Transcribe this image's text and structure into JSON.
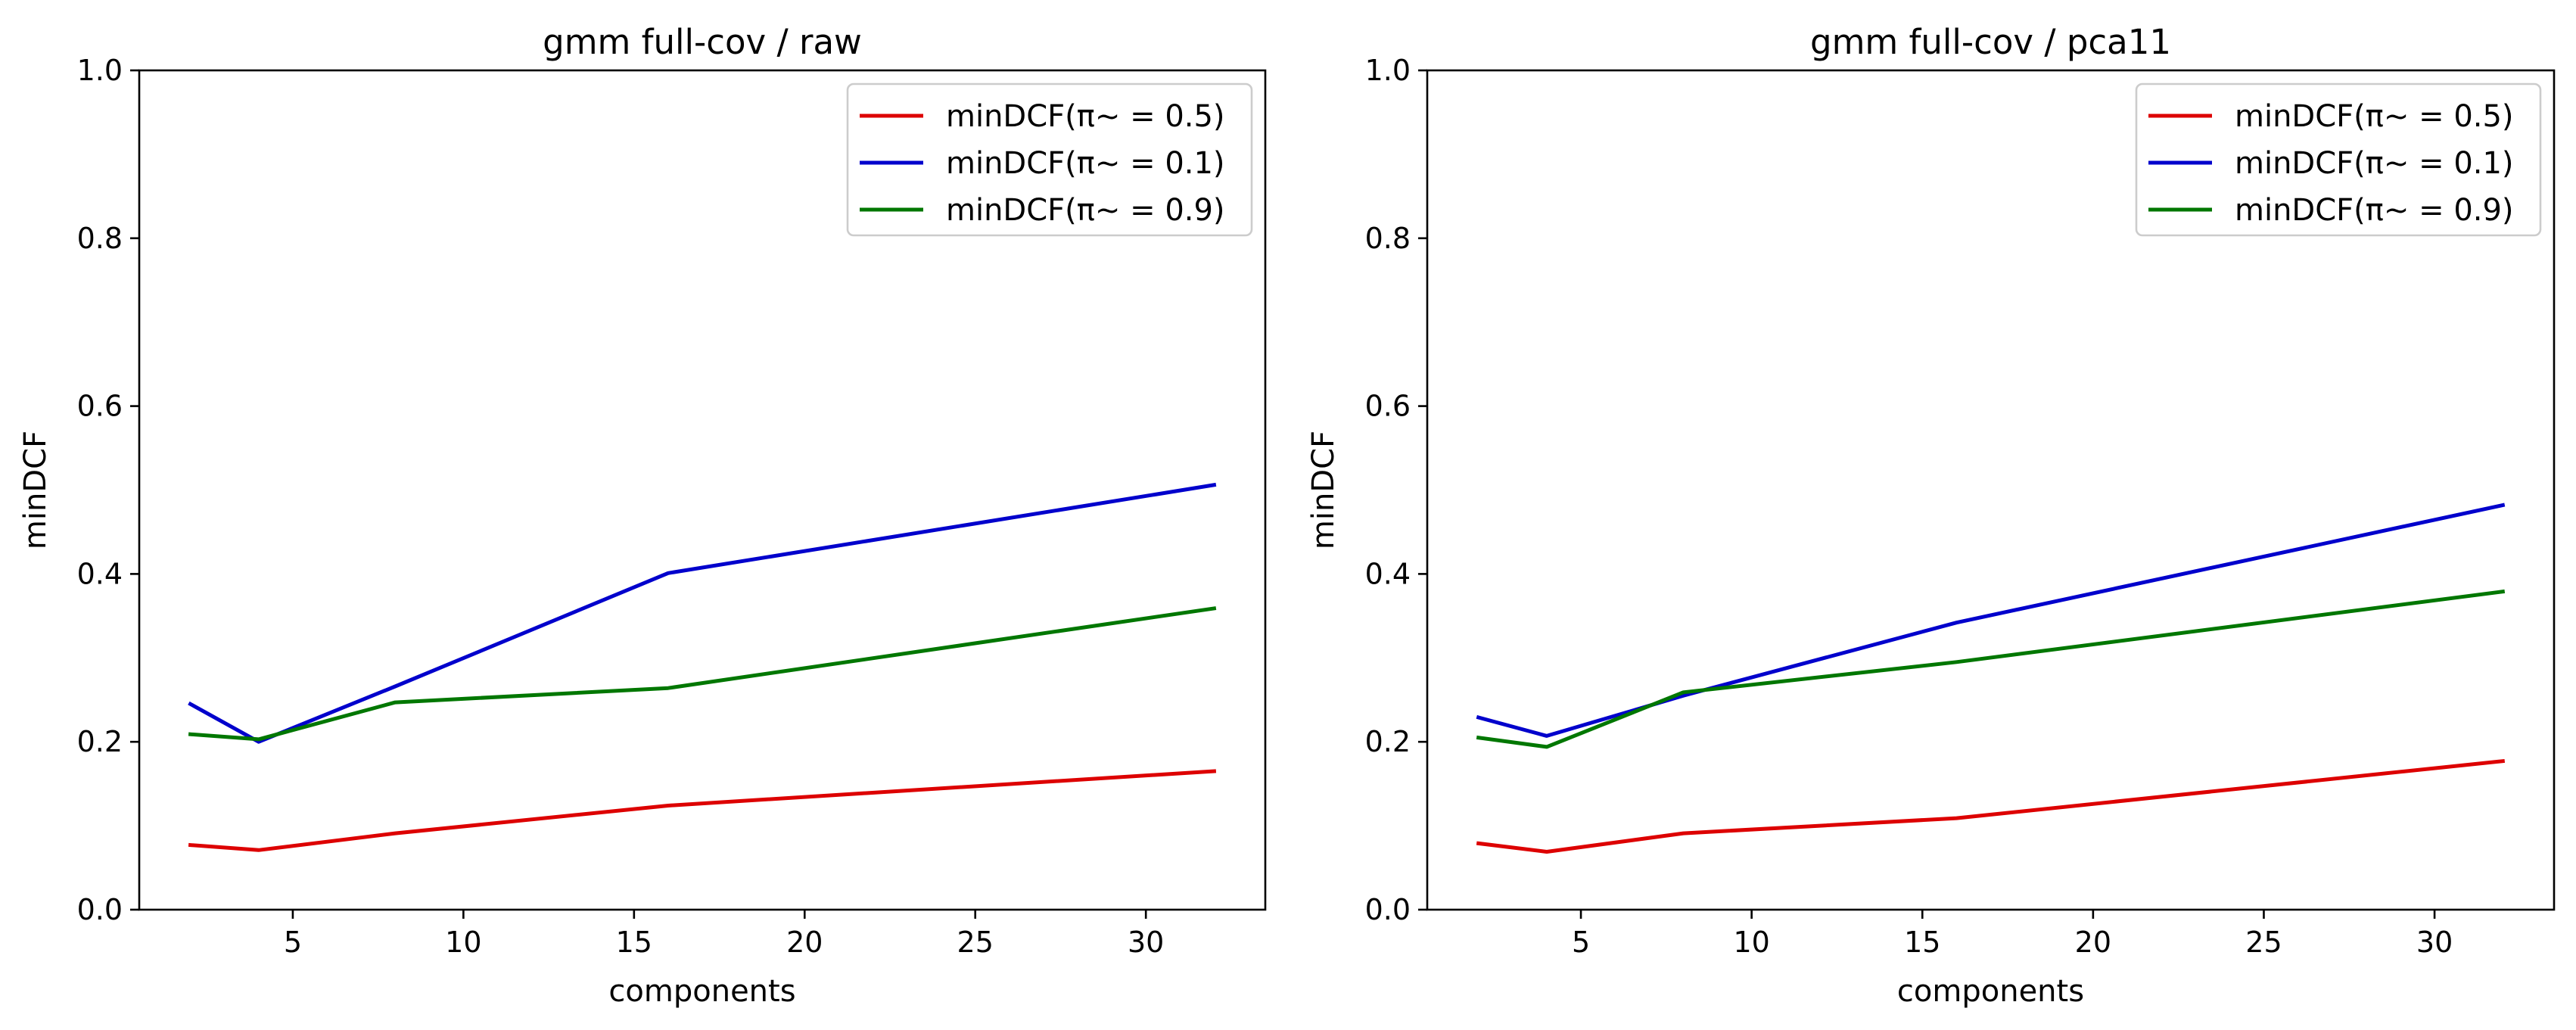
{
  "chart_data": [
    {
      "type": "line",
      "title": "gmm full-cov / raw",
      "xlabel": "components",
      "ylabel": "minDCF",
      "xlim": [
        0.5,
        33.5
      ],
      "ylim": [
        0.0,
        1.0
      ],
      "xticks": [
        5,
        10,
        15,
        20,
        25,
        30
      ],
      "yticks": [
        0.0,
        0.2,
        0.4,
        0.6,
        0.8,
        1.0
      ],
      "xtick_labels": [
        "5",
        "10",
        "15",
        "20",
        "25",
        "30"
      ],
      "ytick_labels": [
        "0.0",
        "0.2",
        "0.4",
        "0.6",
        "0.8",
        "1.0"
      ],
      "legend_position": "top-right",
      "grid": false,
      "x": [
        2,
        4,
        8,
        16,
        32
      ],
      "series": [
        {
          "name": "minDCF(π~ = 0.5)",
          "color": "#dd0000",
          "values": [
            0.077,
            0.071,
            0.091,
            0.124,
            0.165
          ]
        },
        {
          "name": "minDCF(π~ = 0.1)",
          "color": "#0000cc",
          "values": [
            0.245,
            0.2,
            0.266,
            0.401,
            0.506
          ]
        },
        {
          "name": "minDCF(π~ = 0.9)",
          "color": "#007700",
          "values": [
            0.209,
            0.203,
            0.247,
            0.264,
            0.359
          ]
        }
      ]
    },
    {
      "type": "line",
      "title": "gmm full-cov / pca11",
      "xlabel": "components",
      "ylabel": "minDCF",
      "xlim": [
        0.5,
        33.5
      ],
      "ylim": [
        0.0,
        1.0
      ],
      "xticks": [
        5,
        10,
        15,
        20,
        25,
        30
      ],
      "yticks": [
        0.0,
        0.2,
        0.4,
        0.6,
        0.8,
        1.0
      ],
      "xtick_labels": [
        "5",
        "10",
        "15",
        "20",
        "25",
        "30"
      ],
      "ytick_labels": [
        "0.0",
        "0.2",
        "0.4",
        "0.6",
        "0.8",
        "1.0"
      ],
      "legend_position": "top-right",
      "grid": false,
      "x": [
        2,
        4,
        8,
        16,
        32
      ],
      "series": [
        {
          "name": "minDCF(π~ = 0.5)",
          "color": "#dd0000",
          "values": [
            0.079,
            0.069,
            0.091,
            0.109,
            0.177
          ]
        },
        {
          "name": "minDCF(π~ = 0.1)",
          "color": "#0000cc",
          "values": [
            0.229,
            0.207,
            0.255,
            0.342,
            0.482
          ]
        },
        {
          "name": "minDCF(π~ = 0.9)",
          "color": "#007700",
          "values": [
            0.205,
            0.194,
            0.259,
            0.295,
            0.379
          ]
        }
      ]
    }
  ]
}
